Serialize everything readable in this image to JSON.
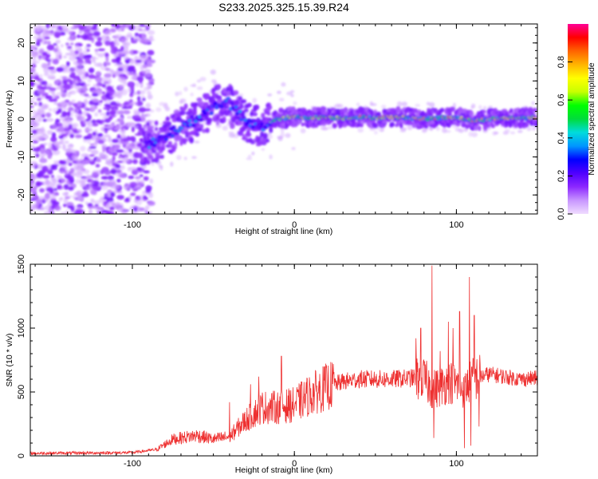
{
  "figure_title": "S233.2025.325.15.39.R24",
  "chart_data": [
    {
      "type": "heatmap",
      "xlabel": "Height of straight line (km)",
      "ylabel": "Frequency (Hz)",
      "xlim": [
        -163,
        150
      ],
      "ylim": [
        -25,
        25
      ],
      "xticks": [
        -100,
        0,
        100
      ],
      "xtick_labels": [
        "-100",
        "0",
        "100"
      ],
      "yticks": [
        -20,
        -10,
        0,
        10,
        20
      ],
      "ytick_labels": [
        "-20",
        "-10",
        "0",
        "10",
        "20"
      ],
      "ridge": {
        "x": [
          -90,
          -80,
          -70,
          -60,
          -50,
          -42,
          -30,
          -20,
          -10,
          0,
          10,
          20,
          30,
          40,
          50,
          60,
          70,
          80,
          90,
          100,
          110,
          120,
          130,
          140,
          148
        ],
        "y": [
          -7,
          -5,
          -2,
          0,
          3,
          5,
          -1,
          -2,
          0,
          0.5,
          0.3,
          0.5,
          0.2,
          0.5,
          0.3,
          0.5,
          0.3,
          0,
          0.3,
          0.5,
          -0.5,
          0,
          0.2,
          0.3,
          0.3
        ]
      },
      "colorbar": {
        "label": "Normalized spectral amplitude",
        "range": [
          0,
          1
        ],
        "ticks": [
          0.0,
          0.2,
          0.4,
          0.6,
          0.8
        ],
        "tick_labels": [
          "0.0",
          "0.2",
          "0.4",
          "0.6",
          "0.8"
        ],
        "colors": [
          "#f0dcff",
          "#c896ff",
          "#8c28ff",
          "#5000ff",
          "#0000ff",
          "#0096ff",
          "#00dcdc",
          "#00dc3c",
          "#00ff00",
          "#c8ff00",
          "#ffff00",
          "#ffb400",
          "#ff6400",
          "#ff0000",
          "#ff0096"
        ]
      }
    },
    {
      "type": "line",
      "xlabel": "Height of straight line (km)",
      "ylabel": "SNR (10 * v/v)",
      "xlim": [
        -163,
        150
      ],
      "ylim": [
        0,
        1500
      ],
      "xticks": [
        -100,
        0,
        100
      ],
      "xtick_labels": [
        "-100",
        "0",
        "100"
      ],
      "yticks": [
        0,
        500,
        1000,
        1500
      ],
      "ytick_labels": [
        "0",
        "500",
        "1000",
        "1500"
      ],
      "color": "#ee3030",
      "trend": {
        "x": [
          -163,
          -100,
          -85,
          -75,
          -60,
          -50,
          -40,
          -30,
          -20,
          -10,
          0,
          10,
          20,
          30,
          40,
          60,
          75,
          80,
          85,
          90,
          95,
          100,
          105,
          110,
          120,
          130,
          140,
          150
        ],
        "y": [
          20,
          25,
          50,
          130,
          160,
          130,
          150,
          280,
          380,
          380,
          400,
          480,
          540,
          580,
          600,
          600,
          610,
          600,
          520,
          540,
          580,
          560,
          520,
          600,
          640,
          620,
          600,
          610
        ]
      },
      "spikes": [
        {
          "x": -40,
          "y": 420
        },
        {
          "x": -27,
          "y": 560
        },
        {
          "x": -22,
          "y": 620
        },
        {
          "x": -8,
          "y": 780
        },
        {
          "x": 75,
          "y": 920
        },
        {
          "x": 78,
          "y": 1000
        },
        {
          "x": 85,
          "y": 1490
        },
        {
          "x": 86,
          "y": 140
        },
        {
          "x": 90,
          "y": 820
        },
        {
          "x": 95,
          "y": 1050
        },
        {
          "x": 98,
          "y": 1000
        },
        {
          "x": 102,
          "y": 1130
        },
        {
          "x": 105,
          "y": 60
        },
        {
          "x": 108,
          "y": 1400
        },
        {
          "x": 109,
          "y": 80
        },
        {
          "x": 111,
          "y": 1100
        },
        {
          "x": 114,
          "y": 230
        }
      ]
    }
  ]
}
